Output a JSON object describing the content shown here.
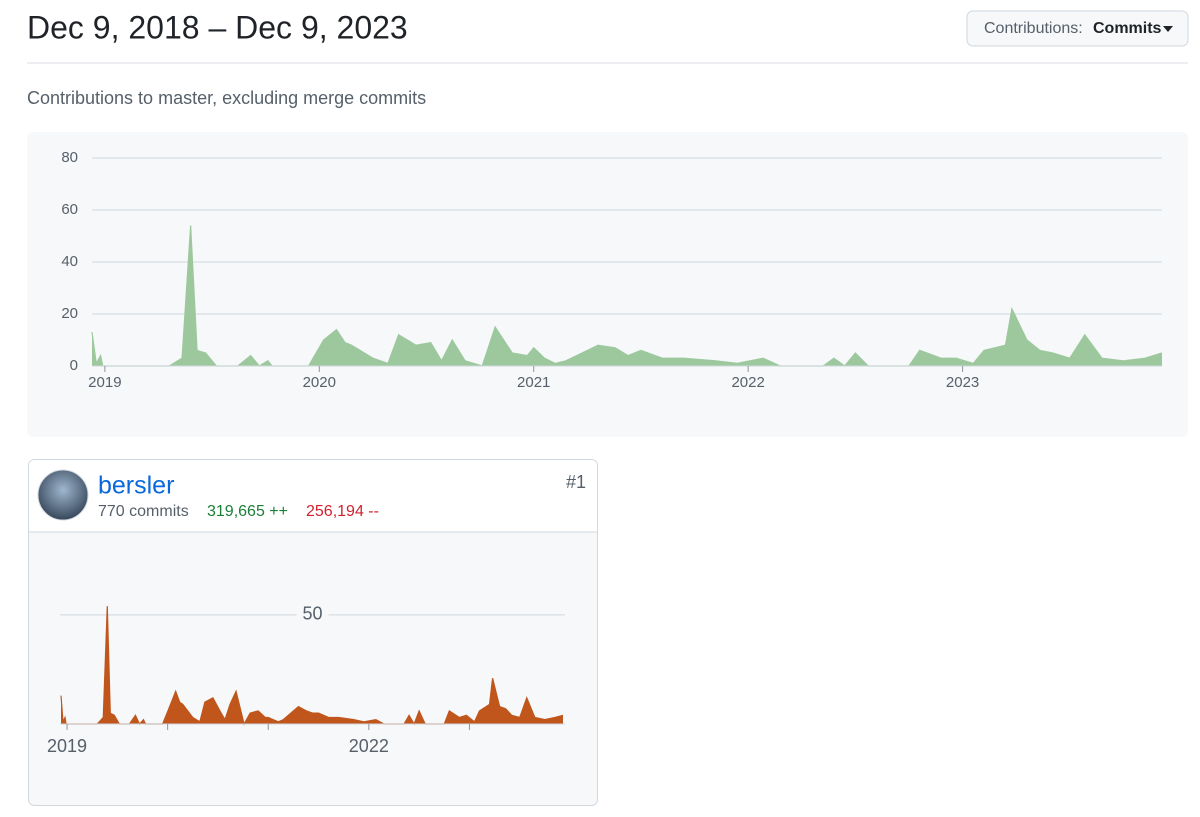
{
  "header": {
    "title": "Dec 9, 2018 – Dec 9, 2023",
    "filter_label": "Contributions:",
    "filter_value": "Commits"
  },
  "subtitle": "Contributions to master, excluding merge commits",
  "contributors": [
    {
      "rank": "#1",
      "name": "bersler",
      "commits": "770 commits",
      "additions": "319,665 ++",
      "deletions": "256,194 --"
    }
  ],
  "chart_data": [
    {
      "type": "area",
      "color": "#9dc89e",
      "grid": true,
      "xlim": [
        2018.94,
        2023.93
      ],
      "xticks": [
        2019,
        2020,
        2021,
        2022,
        2023
      ],
      "ylim": [
        0,
        80
      ],
      "yticks": [
        0,
        20,
        40,
        60,
        80
      ],
      "x": [
        2018.94,
        2018.96,
        2018.98,
        2018.99,
        2019.01,
        2019.3,
        2019.36,
        2019.4,
        2019.43,
        2019.47,
        2019.52,
        2019.62,
        2019.68,
        2019.72,
        2019.76,
        2019.78,
        2019.8,
        2019.95,
        2020.02,
        2020.08,
        2020.12,
        2020.15,
        2020.25,
        2020.32,
        2020.37,
        2020.45,
        2020.52,
        2020.57,
        2020.62,
        2020.68,
        2020.76,
        2020.82,
        2020.9,
        2020.97,
        2021.0,
        2021.05,
        2021.1,
        2021.15,
        2021.3,
        2021.38,
        2021.44,
        2021.5,
        2021.6,
        2021.7,
        2021.85,
        2021.95,
        2022.07,
        2022.15,
        2022.35,
        2022.4,
        2022.45,
        2022.5,
        2022.56,
        2022.75,
        2022.8,
        2022.9,
        2022.97,
        2023.05,
        2023.1,
        2023.2,
        2023.23,
        2023.3,
        2023.36,
        2023.42,
        2023.5,
        2023.57,
        2023.65,
        2023.75,
        2023.85,
        2023.93
      ],
      "values": [
        13,
        1,
        4,
        0,
        0,
        0,
        3,
        54,
        6,
        5,
        0,
        0,
        4,
        0,
        2,
        0,
        0,
        0,
        10,
        14,
        9,
        8,
        3,
        1,
        12,
        8,
        9,
        2,
        10,
        2,
        0,
        15,
        5,
        4,
        7,
        3,
        1,
        2,
        8,
        7,
        4,
        6,
        3,
        3,
        2,
        1,
        3,
        0,
        0,
        3,
        0,
        5,
        0,
        0,
        6,
        3,
        3,
        1,
        6,
        8,
        22,
        10,
        6,
        5,
        3,
        12,
        3,
        2,
        3,
        5
      ]
    },
    {
      "type": "area",
      "color": "#c0561b",
      "grid": true,
      "xlim": [
        2018.93,
        2023.95
      ],
      "xticks": [
        2019,
        2022
      ],
      "minor_xticks": [
        2020,
        2021,
        2023
      ],
      "ylim": [
        0,
        55
      ],
      "yticks": [
        50
      ],
      "x": [
        2018.94,
        2018.96,
        2018.98,
        2018.99,
        2019.01,
        2019.3,
        2019.36,
        2019.4,
        2019.43,
        2019.47,
        2019.52,
        2019.62,
        2019.68,
        2019.72,
        2019.76,
        2019.78,
        2019.8,
        2019.95,
        2020.02,
        2020.08,
        2020.12,
        2020.15,
        2020.25,
        2020.32,
        2020.37,
        2020.45,
        2020.52,
        2020.57,
        2020.62,
        2020.68,
        2020.76,
        2020.82,
        2020.9,
        2020.97,
        2021.0,
        2021.05,
        2021.1,
        2021.15,
        2021.3,
        2021.38,
        2021.44,
        2021.5,
        2021.6,
        2021.7,
        2021.85,
        2021.95,
        2022.07,
        2022.15,
        2022.35,
        2022.4,
        2022.45,
        2022.5,
        2022.56,
        2022.75,
        2022.8,
        2022.9,
        2022.97,
        2023.05,
        2023.1,
        2023.2,
        2023.23,
        2023.3,
        2023.36,
        2023.42,
        2023.5,
        2023.57,
        2023.65,
        2023.75,
        2023.85,
        2023.93
      ],
      "values": [
        13,
        1,
        3,
        0,
        0,
        0,
        3,
        54,
        5,
        4,
        0,
        0,
        4,
        0,
        2,
        0,
        0,
        0,
        8,
        15,
        10,
        9,
        3,
        1,
        10,
        12,
        6,
        2,
        9,
        15,
        0,
        5,
        6,
        3,
        3,
        2,
        1,
        2,
        8,
        6,
        5,
        5,
        3,
        3,
        2,
        1,
        2,
        0,
        0,
        4,
        0,
        6,
        0,
        0,
        6,
        3,
        4,
        1,
        6,
        9,
        21,
        8,
        7,
        4,
        3,
        12,
        3,
        2,
        3,
        4
      ]
    }
  ]
}
